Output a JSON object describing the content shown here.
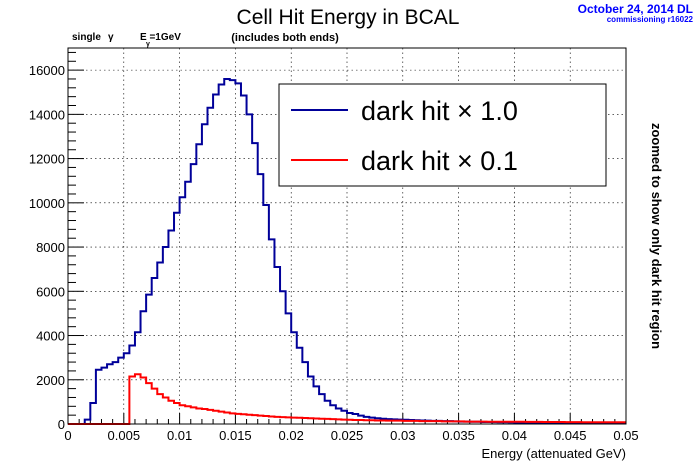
{
  "header": {
    "title": "Cell Hit Energy in BCAL",
    "subtitle": "(includes both ends)",
    "single_label": "single",
    "gamma_symbol": "γ",
    "energy_label": "E =1GeV",
    "energy_subscript": "γ",
    "date_stamp": "October 24, 2014 DL",
    "run_stamp": "commissioning r16022",
    "side_note": "zoomed to show only dark hit region"
  },
  "chart_data": {
    "type": "line",
    "title": "Cell Hit Energy in BCAL",
    "xlabel": "Energy (attenuated GeV)",
    "ylabel": "",
    "xlim": [
      0,
      0.05
    ],
    "ylim": [
      0,
      17000
    ],
    "grid": true,
    "x_ticks": [
      "0",
      "0.005",
      "0.01",
      "0.015",
      "0.02",
      "0.025",
      "0.03",
      "0.035",
      "0.04",
      "0.045",
      "0.05"
    ],
    "x_tick_values": [
      0,
      0.005,
      0.01,
      0.015,
      0.02,
      0.025,
      0.03,
      0.035,
      0.04,
      0.045,
      0.05
    ],
    "y_ticks": [
      "0",
      "2000",
      "4000",
      "6000",
      "8000",
      "10000",
      "12000",
      "14000",
      "16000"
    ],
    "y_tick_values": [
      0,
      2000,
      4000,
      6000,
      8000,
      10000,
      12000,
      14000,
      16000
    ],
    "legend_position": "top-right",
    "bin_width": 0.0005,
    "series": [
      {
        "name": "dark hit × 1.0",
        "color": "#000099",
        "values": [
          0,
          0,
          0,
          200,
          950,
          2450,
          2550,
          2700,
          2800,
          3000,
          3200,
          3550,
          4150,
          5100,
          5850,
          6600,
          7300,
          8000,
          8750,
          9550,
          10250,
          10950,
          11750,
          12650,
          13550,
          14300,
          14900,
          15350,
          15600,
          15550,
          15400,
          14850,
          14000,
          12700,
          11300,
          9900,
          8350,
          7100,
          6000,
          5000,
          4150,
          3450,
          2800,
          2150,
          1700,
          1350,
          1050,
          850,
          700,
          600,
          500,
          450,
          380,
          320,
          290,
          260,
          240,
          220,
          210,
          200,
          190,
          180,
          170,
          160,
          150,
          140,
          140,
          130,
          130,
          120,
          110,
          110,
          100,
          100,
          90,
          90,
          85,
          80,
          80,
          75,
          70,
          70,
          65,
          65,
          60,
          60,
          55,
          55,
          50,
          50,
          50,
          45,
          45,
          40,
          40,
          40,
          35,
          35,
          35,
          30
        ]
      },
      {
        "name": "dark hit × 0.1",
        "color": "#ff0000",
        "values": [
          0,
          0,
          0,
          0,
          0,
          0,
          0,
          0,
          0,
          0,
          0,
          2150,
          2250,
          2100,
          1850,
          1600,
          1350,
          1200,
          1050,
          950,
          850,
          800,
          750,
          700,
          680,
          640,
          600,
          560,
          520,
          480,
          460,
          440,
          420,
          400,
          380,
          360,
          340,
          320,
          310,
          300,
          290,
          280,
          270,
          260,
          250,
          240,
          230,
          220,
          210,
          200,
          190,
          180,
          180,
          170,
          170,
          160,
          160,
          150,
          150,
          150,
          140,
          140,
          140,
          130,
          130,
          130,
          130,
          120,
          120,
          120,
          120,
          110,
          110,
          110,
          110,
          100,
          100,
          100,
          100,
          100,
          100,
          100,
          95,
          95,
          95,
          90,
          90,
          90,
          90,
          85,
          85,
          85,
          80,
          80,
          80,
          80,
          80,
          80,
          80,
          80
        ]
      }
    ]
  }
}
